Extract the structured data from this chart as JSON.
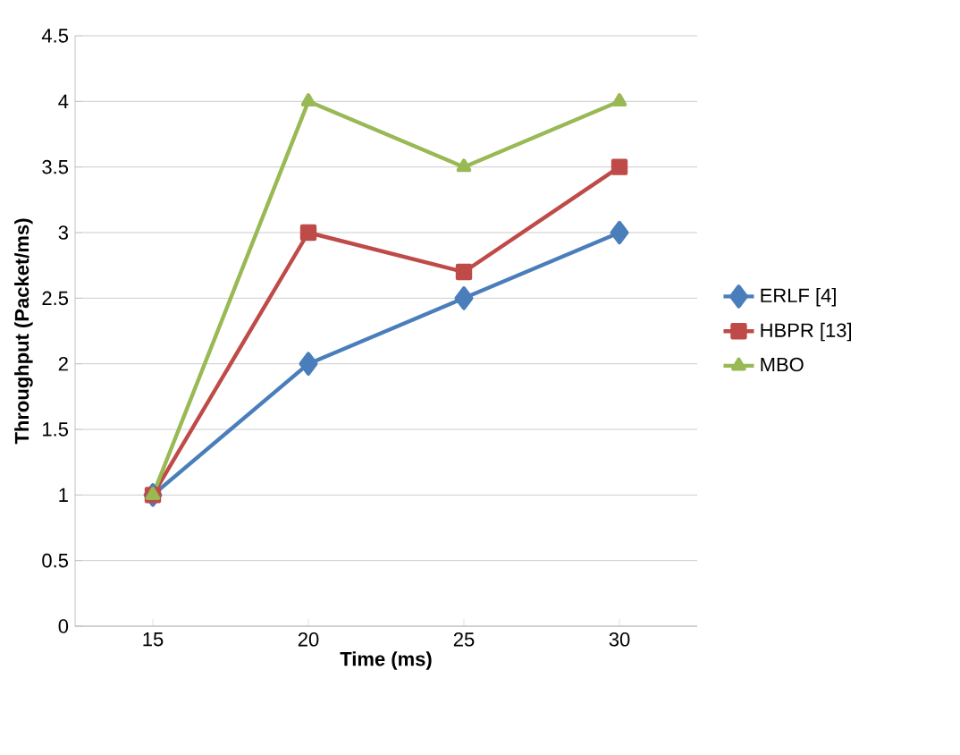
{
  "chart_data": {
    "type": "line",
    "xlabel": "Time (ms)",
    "ylabel": "Throughput (Packet/ms)",
    "categories": [
      "15",
      "20",
      "25",
      "30"
    ],
    "series": [
      {
        "name": "ERLF [4]",
        "color": "#4a7ebb",
        "marker": "diamond",
        "values": [
          1,
          2,
          2.5,
          3
        ]
      },
      {
        "name": "HBPR [13]",
        "color": "#be4b48",
        "marker": "square",
        "values": [
          1,
          3,
          2.7,
          3.5
        ]
      },
      {
        "name": "MBO",
        "color": "#98b954",
        "marker": "triangle",
        "values": [
          1,
          4,
          3.5,
          4
        ]
      }
    ],
    "ylim": [
      0,
      4.5
    ],
    "yticks": [
      0,
      0.5,
      1,
      1.5,
      2,
      2.5,
      3,
      3.5,
      4,
      4.5
    ],
    "grid": "y",
    "legend": "right"
  }
}
